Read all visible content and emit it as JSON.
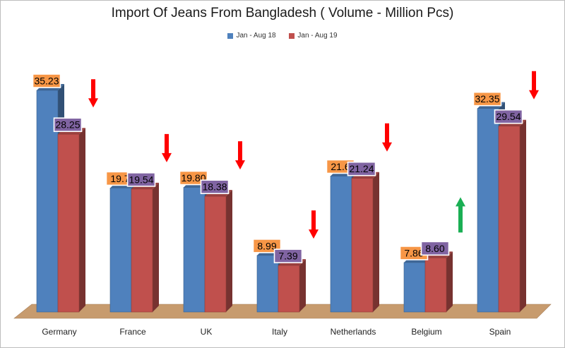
{
  "chart_data": {
    "type": "bar",
    "title": "Import Of Jeans From Bangladesh ( Volume - Million Pcs)",
    "categories": [
      "Germany",
      "France",
      "UK",
      "Italy",
      "Netherlands",
      "Belgium",
      "Spain"
    ],
    "series": [
      {
        "name": "Jan - Aug 18",
        "color": "#4f81bd",
        "values": [
          35.23,
          19.7,
          19.8,
          8.99,
          21.6,
          7.86,
          32.35
        ],
        "labels": [
          "35.23",
          "19.7",
          "19.80",
          "8.99",
          "21.6",
          "7.86",
          "32.35"
        ]
      },
      {
        "name": "Jan - Aug 19",
        "color": "#c0504d",
        "values": [
          28.25,
          19.54,
          18.38,
          7.39,
          21.24,
          8.6,
          29.54
        ],
        "labels": [
          "28.25",
          "19.54",
          "18.38",
          "7.39",
          "21.24",
          "8.60",
          "29.54"
        ]
      }
    ],
    "trend_arrows": [
      "down",
      "down",
      "down",
      "down",
      "down",
      "up",
      "down"
    ],
    "arrow_colors": {
      "down": "#ff0000",
      "up": "#1aaf54"
    },
    "label_fill": {
      "series1": "#f79646",
      "series2": "#8064a2"
    },
    "floor_color": "#c79b6e",
    "ylim": [
      0,
      35.23
    ],
    "grid": false,
    "legend_position": "top"
  }
}
